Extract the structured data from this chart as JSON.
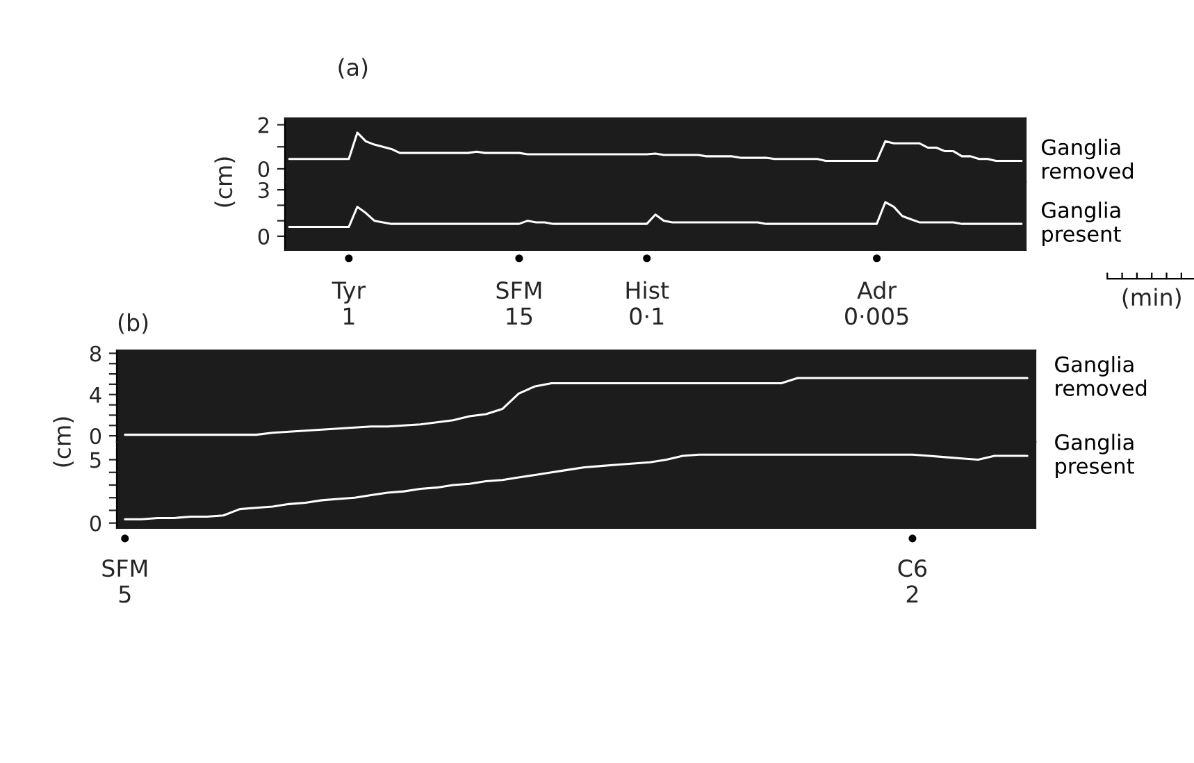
{
  "chart_data": [
    {
      "type": "line",
      "title": "(a)",
      "ylabel": "(cm)",
      "tick_labels": "y",
      "legend": false,
      "grid": false,
      "marker": "none",
      "line_style": "solid",
      "categories": [
        null,
        null,
        null,
        null,
        null,
        null,
        null,
        null,
        null,
        null,
        null,
        null,
        null,
        null,
        null,
        null,
        null,
        null,
        null,
        null,
        null,
        null,
        null,
        null,
        null,
        null,
        null,
        null,
        null,
        null,
        null,
        null,
        null,
        null,
        null,
        null,
        null,
        null,
        null,
        null,
        null,
        null,
        null,
        null,
        null,
        null,
        null,
        null,
        null,
        null,
        null,
        null,
        null,
        null,
        null,
        null,
        null,
        null,
        null,
        null,
        null,
        null,
        null,
        null,
        null,
        null,
        null,
        null,
        null,
        null,
        null,
        null,
        null,
        null,
        null,
        null,
        null,
        null,
        null,
        null,
        null,
        null,
        null,
        null,
        null,
        null,
        null
      ],
      "ylim": [
        -0.6,
        2.3
      ],
      "yticks": [
        0,
        {
          "value": 1,
          "label": null
        },
        2
      ],
      "series": [
        {
          "name": "Ganglia removed",
          "color": "#ffffff",
          "values": [
            0.45,
            0.45,
            0.45,
            0.45,
            0.45,
            0.45,
            0.45,
            0.45,
            1.64,
            1.25,
            1.1,
            1.0,
            0.9,
            0.72,
            0.72,
            0.72,
            0.72,
            0.72,
            0.72,
            0.72,
            0.72,
            0.72,
            0.78,
            0.72,
            0.72,
            0.72,
            0.72,
            0.72,
            0.66,
            0.66,
            0.66,
            0.66,
            0.66,
            0.66,
            0.66,
            0.66,
            0.66,
            0.66,
            0.66,
            0.66,
            0.66,
            0.66,
            0.66,
            0.69,
            0.63,
            0.63,
            0.63,
            0.63,
            0.63,
            0.57,
            0.57,
            0.57,
            0.57,
            0.5,
            0.5,
            0.5,
            0.5,
            0.45,
            0.45,
            0.45,
            0.45,
            0.45,
            0.45,
            0.36,
            0.36,
            0.36,
            0.36,
            0.36,
            0.36,
            0.36,
            1.25,
            1.16,
            1.16,
            1.16,
            1.16,
            0.96,
            0.96,
            0.8,
            0.8,
            0.57,
            0.57,
            0.45,
            0.45,
            0.36,
            0.36,
            0.36,
            0.36
          ]
        }
      ]
    },
    {
      "type": "line",
      "legend": false,
      "grid": false,
      "marker": "none",
      "line_style": "solid",
      "categories": [
        null,
        null,
        null,
        null,
        null,
        null,
        null,
        "Tyr\n1",
        null,
        null,
        null,
        null,
        null,
        null,
        null,
        null,
        null,
        null,
        null,
        null,
        null,
        null,
        null,
        null,
        null,
        null,
        null,
        "SFM\n15",
        null,
        null,
        null,
        null,
        null,
        null,
        null,
        null,
        null,
        null,
        null,
        null,
        null,
        null,
        "Hist\n0·1",
        null,
        null,
        null,
        null,
        null,
        null,
        null,
        null,
        null,
        null,
        null,
        null,
        null,
        null,
        null,
        null,
        null,
        null,
        null,
        null,
        null,
        null,
        null,
        null,
        null,
        null,
        "Adr\n0·005",
        null,
        null,
        null,
        null,
        null,
        null,
        null,
        null,
        null,
        null,
        null,
        null,
        null,
        null,
        null,
        null,
        null
      ],
      "ylim": [
        -0.9,
        3.5
      ],
      "yticks": [
        0,
        {
          "value": 1,
          "label": null
        },
        {
          "value": 2,
          "label": null
        },
        3
      ],
      "annotations": [
        "(min)"
      ],
      "series": [
        {
          "name": "Ganglia present",
          "color": "#ffffff",
          "values": [
            0.6,
            0.6,
            0.6,
            0.6,
            0.6,
            0.6,
            0.6,
            0.6,
            1.9,
            1.5,
            1.0,
            0.9,
            0.8,
            0.8,
            0.8,
            0.8,
            0.8,
            0.8,
            0.8,
            0.8,
            0.8,
            0.8,
            0.8,
            0.8,
            0.8,
            0.8,
            0.8,
            0.8,
            1.0,
            0.9,
            0.9,
            0.8,
            0.8,
            0.8,
            0.8,
            0.8,
            0.8,
            0.8,
            0.8,
            0.8,
            0.8,
            0.8,
            0.8,
            1.4,
            1.0,
            0.9,
            0.9,
            0.9,
            0.9,
            0.9,
            0.9,
            0.9,
            0.9,
            0.9,
            0.9,
            0.9,
            0.8,
            0.8,
            0.8,
            0.8,
            0.8,
            0.8,
            0.8,
            0.8,
            0.8,
            0.8,
            0.8,
            0.8,
            0.8,
            0.8,
            2.2,
            1.9,
            1.3,
            1.1,
            0.9,
            0.9,
            0.9,
            0.9,
            0.9,
            0.8,
            0.8,
            0.8,
            0.8,
            0.8,
            0.8,
            0.8,
            0.8
          ]
        }
      ]
    },
    {
      "type": "line",
      "title": "(b)",
      "ylabel": "(cm)",
      "tick_labels": "y",
      "legend": false,
      "grid": false,
      "marker": "none",
      "line_style": "solid",
      "categories": [
        null,
        null,
        null,
        null,
        null,
        null,
        null,
        null,
        null,
        null,
        null,
        null,
        null,
        null,
        null,
        null,
        null,
        null,
        null,
        null,
        null,
        null,
        null,
        null,
        null,
        null,
        null,
        null,
        null,
        null,
        null,
        null,
        null,
        null,
        null,
        null,
        null,
        null,
        null,
        null,
        null,
        null,
        null,
        null,
        null,
        null,
        null,
        null,
        null,
        null,
        null,
        null,
        null,
        null,
        null,
        null
      ],
      "ylim": [
        -0.6,
        8.3
      ],
      "yticks": [
        0,
        {
          "value": 1,
          "label": null
        },
        {
          "value": 2,
          "label": null
        },
        {
          "value": 3,
          "label": null
        },
        4,
        {
          "value": 5,
          "label": null
        },
        {
          "value": 6,
          "label": null
        },
        {
          "value": 7,
          "label": null
        },
        8
      ],
      "series": [
        {
          "name": "Ganglia removed",
          "color": "#ffffff",
          "values": [
            0.1,
            0.1,
            0.1,
            0.1,
            0.1,
            0.1,
            0.1,
            0.1,
            0.1,
            0.3,
            0.4,
            0.5,
            0.6,
            0.7,
            0.8,
            0.9,
            0.9,
            1.0,
            1.1,
            1.3,
            1.5,
            1.9,
            2.1,
            2.6,
            4.1,
            4.8,
            5.1,
            5.1,
            5.1,
            5.1,
            5.1,
            5.1,
            5.1,
            5.1,
            5.1,
            5.1,
            5.1,
            5.1,
            5.1,
            5.1,
            5.1,
            5.6,
            5.6,
            5.6,
            5.6,
            5.6,
            5.6,
            5.6,
            5.6,
            5.6,
            5.6,
            5.6,
            5.6,
            5.6,
            5.6,
            5.6
          ]
        }
      ]
    },
    {
      "type": "line",
      "legend": false,
      "grid": false,
      "marker": "none",
      "line_style": "solid",
      "categories": [
        "SFM\n5",
        null,
        null,
        null,
        null,
        null,
        null,
        null,
        null,
        null,
        null,
        null,
        null,
        null,
        null,
        null,
        null,
        null,
        null,
        null,
        null,
        null,
        null,
        null,
        null,
        null,
        null,
        null,
        null,
        null,
        null,
        null,
        null,
        null,
        null,
        null,
        null,
        null,
        null,
        null,
        null,
        null,
        null,
        null,
        null,
        null,
        null,
        null,
        "C6\n2",
        null,
        null,
        null,
        null,
        null,
        null,
        null
      ],
      "ylim": [
        -0.4,
        6.4
      ],
      "yticks": [
        0,
        {
          "value": 1,
          "label": null
        },
        {
          "value": 2,
          "label": null
        },
        {
          "value": 3,
          "label": null
        },
        {
          "value": 4,
          "label": null
        },
        5
      ],
      "series": [
        {
          "name": "Ganglia present",
          "color": "#ffffff",
          "values": [
            0.3,
            0.3,
            0.4,
            0.4,
            0.5,
            0.5,
            0.6,
            1.1,
            1.2,
            1.3,
            1.5,
            1.6,
            1.8,
            1.9,
            2.0,
            2.2,
            2.4,
            2.5,
            2.7,
            2.8,
            3.0,
            3.1,
            3.3,
            3.4,
            3.6,
            3.8,
            4.0,
            4.2,
            4.4,
            4.5,
            4.6,
            4.7,
            4.8,
            5.0,
            5.3,
            5.4,
            5.4,
            5.4,
            5.4,
            5.4,
            5.4,
            5.4,
            5.4,
            5.4,
            5.4,
            5.4,
            5.4,
            5.4,
            5.4,
            5.3,
            5.2,
            5.1,
            5.0,
            5.3,
            5.3,
            5.3
          ]
        }
      ]
    }
  ]
}
